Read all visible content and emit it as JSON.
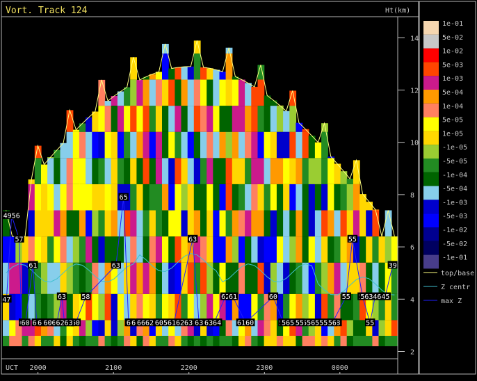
{
  "title": "Vort.  Track 124",
  "colors": {
    "frame": "#b4b4b4",
    "axis_text": "#c8c8c8",
    "title": "#f0e060"
  },
  "chart_data": {
    "type": "heatmap",
    "y_axis": {
      "label": "Ht(km)",
      "ticks": [
        2,
        4,
        6,
        8,
        10,
        12,
        14
      ],
      "range": [
        1.9,
        15.0
      ]
    },
    "x_axis": {
      "label": "UCT",
      "ticks": [
        "2000",
        "2100",
        "2200",
        "2300",
        "0000"
      ],
      "range_min": [
        1932,
        2446
      ]
    },
    "legend_scale": [
      {
        "label": "1e-01",
        "color": "#f5d6b0"
      },
      {
        "label": "5e-02",
        "color": "#c8c8c8"
      },
      {
        "label": "1e-02",
        "color": "#ff0000"
      },
      {
        "label": "5e-03",
        "color": "#ff4500"
      },
      {
        "label": "1e-03",
        "color": "#cc1a8c"
      },
      {
        "label": "5e-04",
        "color": "#ff9900"
      },
      {
        "label": "1e-04",
        "color": "#ff8060"
      },
      {
        "label": "5e-05",
        "color": "#ffff00"
      },
      {
        "label": "1e-05",
        "color": "#ffd700"
      },
      {
        "label": "-1e-05",
        "color": "#9acd32"
      },
      {
        "label": "-5e-05",
        "color": "#228b22"
      },
      {
        "label": "-1e-04",
        "color": "#006400"
      },
      {
        "label": "-5e-04",
        "color": "#87ceeb"
      },
      {
        "label": "-1e-03",
        "color": "#0000cd"
      },
      {
        "label": "-5e-03",
        "color": "#0000ff"
      },
      {
        "label": "-1e-02",
        "color": "#000090"
      },
      {
        "label": "-5e-02",
        "color": "#000060"
      },
      {
        "label": "-1e-01",
        "color": "#483d8b"
      }
    ],
    "series": [
      {
        "name": "top/base",
        "color": "#ffff80"
      },
      {
        "name": "Z centr",
        "color": "#40c0d0"
      },
      {
        "name": "max Z",
        "color": "#2020ff"
      }
    ],
    "max_z_labels": [
      {
        "t": 1935,
        "h": 4.0,
        "text": "47"
      },
      {
        "t": 1939,
        "h": 7.2,
        "text": "4956"
      },
      {
        "t": 1945,
        "h": 6.3,
        "text": "57"
      },
      {
        "t": 1947,
        "h": 3.1,
        "text": "6"
      },
      {
        "t": 1950,
        "h": 3.1,
        "text": "60"
      },
      {
        "t": 1956,
        "h": 5.3,
        "text": "61"
      },
      {
        "t": 1959,
        "h": 3.1,
        "text": "61"
      },
      {
        "t": 1967,
        "h": 3.1,
        "text": "6062"
      },
      {
        "t": 1975,
        "h": 3.1,
        "text": "62"
      },
      {
        "t": 1979,
        "h": 4.1,
        "text": "63"
      },
      {
        "t": 1985,
        "h": 3.1,
        "text": "62"
      },
      {
        "t": 1990,
        "h": 3.1,
        "text": "60"
      },
      {
        "t": 1998,
        "h": 4.1,
        "text": "58"
      },
      {
        "t": 2003,
        "h": 3.1,
        "text": "61"
      },
      {
        "t": 2011,
        "h": 3.1,
        "text": "6062"
      },
      {
        "t": 2021,
        "h": 3.1,
        "text": "6263"
      },
      {
        "t": 2068,
        "h": 7.9,
        "text": "65"
      },
      {
        "t": 2073,
        "h": 3.1,
        "text": "63"
      },
      {
        "t": 2081,
        "h": 3.1,
        "text": "6265"
      },
      {
        "t": 2102,
        "h": 5.3,
        "text": "63"
      },
      {
        "t": 2112,
        "h": 3.1,
        "text": "6"
      },
      {
        "t": 2127,
        "h": 3.1,
        "text": "66626"
      },
      {
        "t": 2148,
        "h": 3.1,
        "text": "605616263"
      },
      {
        "t": 2180,
        "h": 3.1,
        "text": "63"
      },
      {
        "t": 2189,
        "h": 4.1,
        "text": "62"
      },
      {
        "t": 2203,
        "h": 6.3,
        "text": "63"
      },
      {
        "t": 2208,
        "h": 3.1,
        "text": "63"
      },
      {
        "t": 2219,
        "h": 3.1,
        "text": "6364"
      },
      {
        "t": 2235,
        "h": 4.1,
        "text": "61"
      },
      {
        "t": 2245,
        "h": 3.1,
        "text": "6160"
      },
      {
        "t": 2267,
        "h": 4.1,
        "text": "60"
      },
      {
        "t": 2275,
        "h": 3.1,
        "text": "56"
      },
      {
        "t": 2297,
        "h": 3.1,
        "text": "56545556555958"
      },
      {
        "t": 2288,
        "h": 3.1,
        "text": "55"
      },
      {
        "t": 2354,
        "h": 3.1,
        "text": "56"
      },
      {
        "t": 2378,
        "h": 4.1,
        "text": "55"
      },
      {
        "t": 2384,
        "h": 3.1,
        "text": "55"
      },
      {
        "t": 2396,
        "h": 4.1,
        "text": "55"
      },
      {
        "t": 2405,
        "h": 4.1,
        "text": "55"
      },
      {
        "t": 2410,
        "h": 6.3,
        "text": "55"
      },
      {
        "t": 2428,
        "h": 4.1,
        "text": "5634645"
      },
      {
        "t": 2442,
        "h": 5.3,
        "text": "39"
      }
    ]
  }
}
